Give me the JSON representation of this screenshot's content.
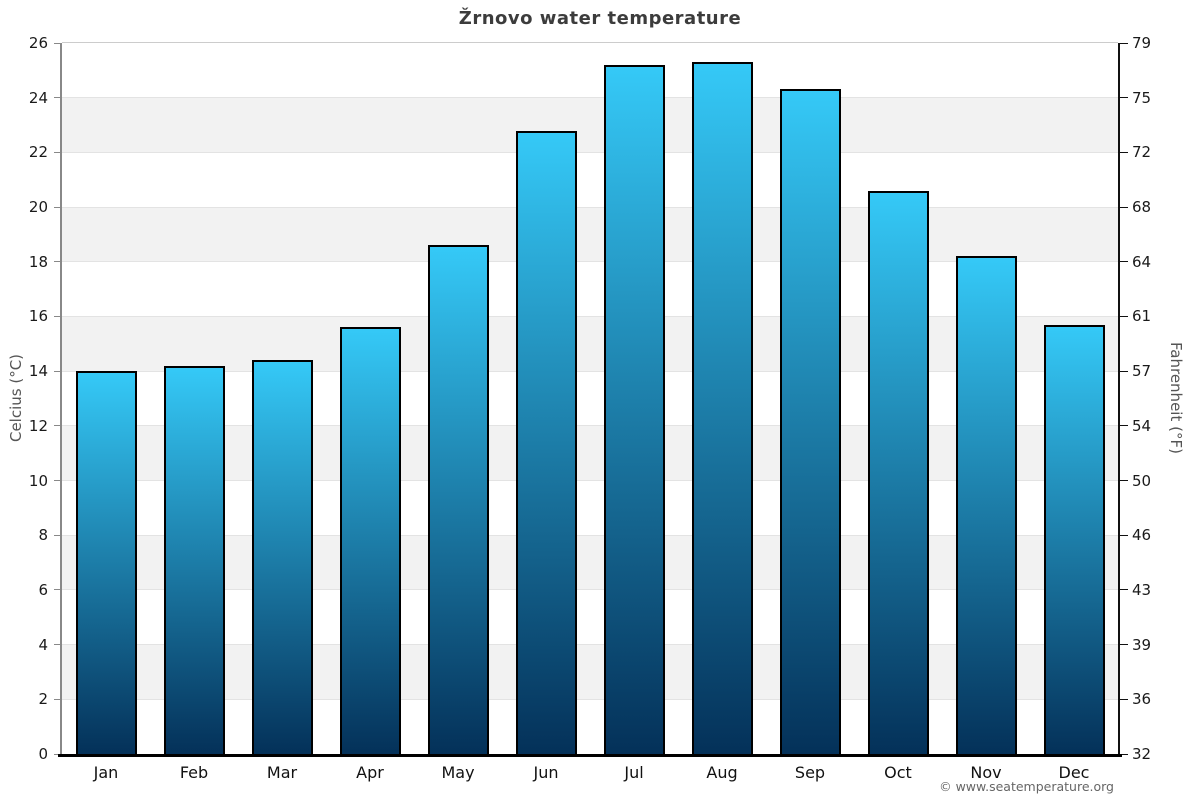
{
  "title": "Žrnovo water temperature",
  "footer": "© www.seatemperature.org",
  "chart_data": {
    "type": "bar",
    "title": "Žrnovo water temperature",
    "categories": [
      "Jan",
      "Feb",
      "Mar",
      "Apr",
      "May",
      "Jun",
      "Jul",
      "Aug",
      "Sep",
      "Oct",
      "Nov",
      "Dec"
    ],
    "values": [
      14.0,
      14.2,
      14.4,
      15.6,
      18.6,
      22.8,
      25.2,
      25.3,
      24.3,
      20.6,
      18.2,
      15.7
    ],
    "unit": "°C",
    "ylabel_left": "Celcius (°C)",
    "ylabel_right": "Fahrenheit (°F)",
    "y_left_ticks": [
      0,
      2,
      4,
      6,
      8,
      10,
      12,
      14,
      16,
      18,
      20,
      22,
      24,
      26
    ],
    "y_right_ticks": [
      32,
      36,
      39,
      43,
      46,
      50,
      54,
      57,
      61,
      64,
      68,
      72,
      75,
      79
    ],
    "ylim": [
      0,
      26
    ],
    "grid": "horizontal-bands-alternating",
    "legend": "none",
    "colors": {
      "bar_gradient_top": "#35c9f7",
      "bar_gradient_bottom": "#043159",
      "bar_border": "#000000",
      "band_shade": "#f2f2f2",
      "band_white": "#ffffff",
      "gridline": "#e3e3e3",
      "plot_top_border": "#cccccc",
      "left_axis_line": "#888888",
      "right_axis_line": "#111111",
      "bottom_axis_line": "#000000",
      "title_color": "#3c3c3c",
      "axis_title_color": "#555555",
      "tick_label_color": "#1a1a1a",
      "footer_color": "#666666"
    }
  }
}
